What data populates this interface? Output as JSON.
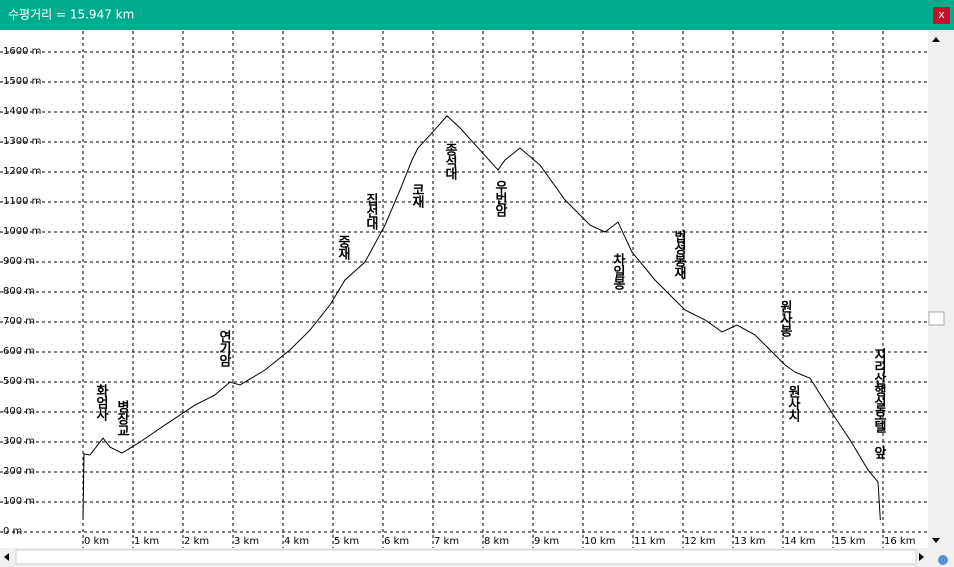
{
  "window": {
    "title": "수평거리 = 15.947 km",
    "close": "x"
  },
  "chart_data": {
    "type": "line",
    "x": [
      0,
      0.02,
      0.14,
      0.4,
      0.54,
      0.78,
      1.14,
      1.64,
      2.24,
      2.64,
      2.94,
      3.14,
      3.64,
      4.14,
      4.54,
      4.94,
      5.24,
      5.64,
      6.04,
      6.34,
      6.58,
      6.7,
      6.94,
      7.28,
      7.54,
      7.94,
      8.3,
      8.44,
      8.74,
      9.14,
      9.64,
      10.14,
      10.44,
      10.7,
      10.98,
      11.44,
      12.04,
      12.44,
      12.78,
      13.08,
      13.44,
      13.74,
      14.04,
      14.24,
      14.54,
      14.94,
      15.34,
      15.7,
      15.9,
      15.947
    ],
    "series": [
      {
        "color": "#000000",
        "values": [
          40,
          260,
          257,
          313,
          283,
          263,
          300,
          357,
          423,
          457,
          500,
          490,
          540,
          607,
          673,
          757,
          840,
          900,
          1023,
          1140,
          1240,
          1280,
          1323,
          1387,
          1347,
          1273,
          1207,
          1240,
          1280,
          1223,
          1107,
          1023,
          1000,
          1033,
          933,
          840,
          740,
          707,
          667,
          690,
          657,
          607,
          557,
          533,
          513,
          407,
          307,
          207,
          167,
          40
        ]
      }
    ],
    "xlim": [
      0,
      16
    ],
    "ylim": [
      0,
      1600
    ],
    "xticks": [
      {
        "value": 0,
        "label": "0 km"
      },
      {
        "value": 1,
        "label": "1 km"
      },
      {
        "value": 2,
        "label": "2 km"
      },
      {
        "value": 3,
        "label": "3 km"
      },
      {
        "value": 4,
        "label": "4 km"
      },
      {
        "value": 5,
        "label": "5 km"
      },
      {
        "value": 6,
        "label": "6 km"
      },
      {
        "value": 7,
        "label": "7 km"
      },
      {
        "value": 8,
        "label": "8 km"
      },
      {
        "value": 9,
        "label": "9 km"
      },
      {
        "value": 10,
        "label": "10 km"
      },
      {
        "value": 11,
        "label": "11 km"
      },
      {
        "value": 12,
        "label": "12 km"
      },
      {
        "value": 13,
        "label": "13 km"
      },
      {
        "value": 14,
        "label": "14 km"
      },
      {
        "value": 15,
        "label": "15 km"
      },
      {
        "value": 16,
        "label": "16 km"
      }
    ],
    "yticks": [
      {
        "value": 0,
        "label": "0 m"
      },
      {
        "value": 100,
        "label": "100 m"
      },
      {
        "value": 200,
        "label": "200 m"
      },
      {
        "value": 300,
        "label": "300 m"
      },
      {
        "value": 400,
        "label": "400 m"
      },
      {
        "value": 500,
        "label": "500 m"
      },
      {
        "value": 600,
        "label": "600 m"
      },
      {
        "value": 700,
        "label": "700 m"
      },
      {
        "value": 800,
        "label": "800 m"
      },
      {
        "value": 900,
        "label": "900 m"
      },
      {
        "value": 1000,
        "label": "1000 m"
      },
      {
        "value": 1100,
        "label": "1100 m"
      },
      {
        "value": 1200,
        "label": "1200 m"
      },
      {
        "value": 1300,
        "label": "1300 m"
      },
      {
        "value": 1400,
        "label": "1400 m"
      },
      {
        "value": 1500,
        "label": "1500 m"
      },
      {
        "value": 1600,
        "label": "1600 m"
      }
    ],
    "grid": true,
    "annotations": [
      "화엄사",
      "병장교",
      "연기암",
      "중재",
      "집선대",
      "코재",
      "종석대",
      "우번암",
      "차일봉",
      "법성봉재",
      "원사봉",
      "원사치",
      "지리산행실호텔 앞"
    ]
  }
}
